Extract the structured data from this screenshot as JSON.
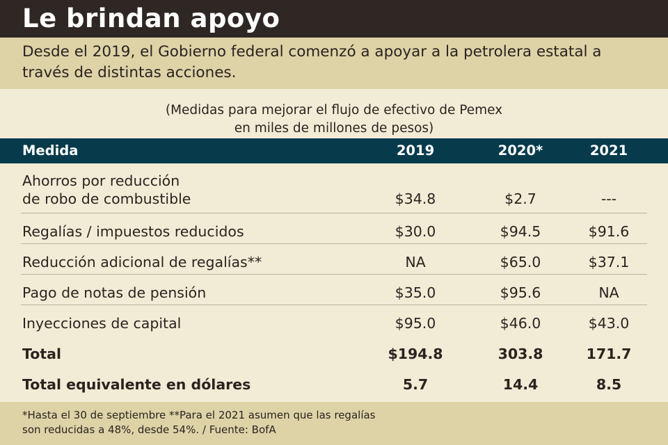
{
  "title": "Le brindan apoyo",
  "subtitle": "Desde el 2019, el Gobierno federal comenzó a apoyar a la petrolera estatal a través de distintas acciones.",
  "chart_data": {
    "type": "table",
    "caption_line1": "(Medidas para mejorar el flujo de efectivo de Pemex",
    "caption_line2": "en miles de millones de pesos)",
    "columns": [
      "Medida",
      "2019",
      "2020*",
      "2021"
    ],
    "rows": [
      {
        "label_line1": "Ahorros por reducción",
        "label_line2": "de robo de combustible",
        "values": [
          "$34.8",
          "$2.7",
          "---"
        ],
        "bold": false
      },
      {
        "label_line1": "Regalías / impuestos reducidos",
        "label_line2": "",
        "values": [
          "$30.0",
          "$94.5",
          "$91.6"
        ],
        "bold": false
      },
      {
        "label_line1": "Reducción adicional de regalías**",
        "label_line2": "",
        "values": [
          "NA",
          "$65.0",
          "$37.1"
        ],
        "bold": false
      },
      {
        "label_line1": "Pago de notas de pensión",
        "label_line2": "",
        "values": [
          "$35.0",
          "$95.6",
          "NA"
        ],
        "bold": false
      },
      {
        "label_line1": "Inyecciones de capital",
        "label_line2": "",
        "values": [
          "$95.0",
          "$46.0",
          "$43.0"
        ],
        "bold": false
      },
      {
        "label_line1": "Total",
        "label_line2": "",
        "values": [
          "$194.8",
          "303.8",
          "171.7"
        ],
        "bold": true
      },
      {
        "label_line1": "Total equivalente en dólares",
        "label_line2": "",
        "values": [
          "5.7",
          "14.4",
          "8.5"
        ],
        "bold": true
      }
    ]
  },
  "footnote_line1": "*Hasta el 30 de septiembre **Para el 2021 asumen que las regalías",
  "footnote_line2": "son reducidas a 48%, desde 54%. / Fuente: BofA",
  "colors": {
    "title_bg": "#2e2724",
    "band_bg": "#ddd3a7",
    "table_bg": "#f2ecd6",
    "header_bg": "#073b4c"
  }
}
